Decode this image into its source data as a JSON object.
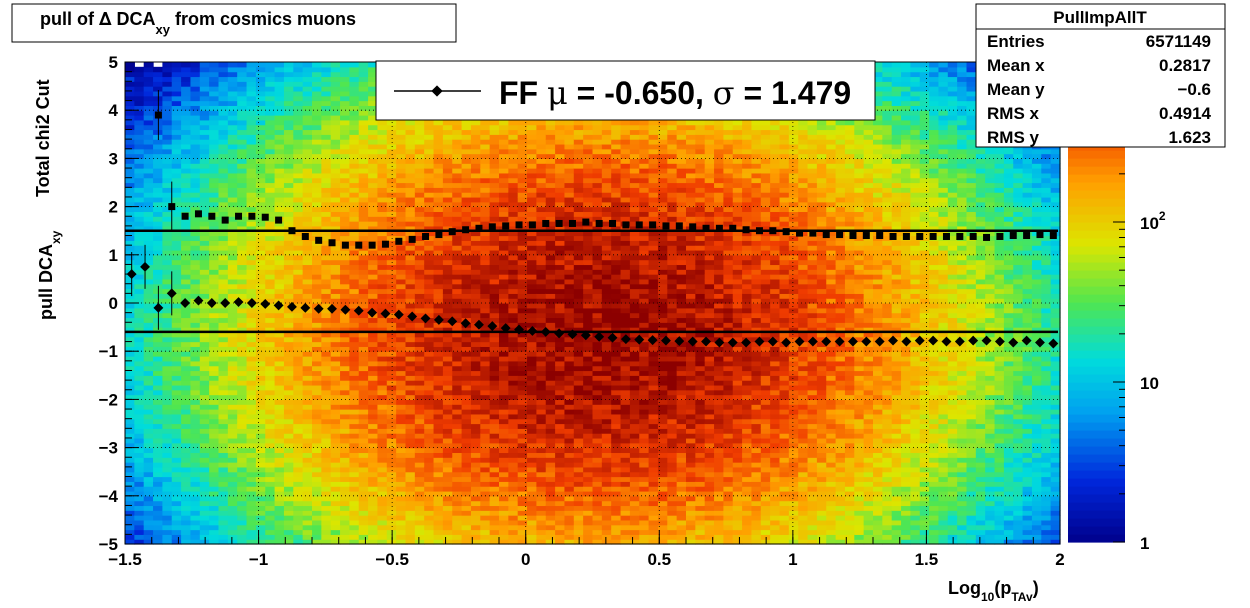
{
  "title": {
    "prefix": "pull of ",
    "delta": "∆",
    "main": " DCA",
    "sub": "xy",
    "suffix": " from cosmics muons"
  },
  "stats_box": {
    "name": "PullImpAllT",
    "rows": [
      {
        "label": "Entries",
        "value": "6571149"
      },
      {
        "label": "Mean x",
        "value": "0.2817"
      },
      {
        "label": "Mean y",
        "value": "−0.6"
      },
      {
        "label": "RMS x",
        "value": "0.4914"
      },
      {
        "label": "RMS y",
        "value": "1.623"
      }
    ]
  },
  "legend": {
    "text_a": "FF ",
    "mu": "μ",
    "text_b": " = -0.650, ",
    "sigma": "σ",
    "text_c": " =   1.479"
  },
  "axes": {
    "xlabel_main": "Log",
    "xlabel_sub1": "10",
    "xlabel_paren": "(p",
    "xlabel_sub2": "TAv",
    "xlabel_close": ")",
    "ylabel_main": "pull DCA",
    "ylabel_sub": "xy",
    "ylabel_line2": "Total chi2 Cut",
    "xticks": [
      "−1.5",
      "−1",
      "−0.5",
      "0",
      "0.5",
      "1",
      "1.5",
      "2"
    ],
    "yticks": [
      "−5",
      "−4",
      "−3",
      "−2",
      "−1",
      "0",
      "1",
      "2",
      "3",
      "4",
      "5"
    ],
    "zticks": [
      {
        "label": "1",
        "value": 1,
        "type": "plain"
      },
      {
        "label": "10",
        "value": 10,
        "type": "plain"
      },
      {
        "base": "10",
        "exp": "2",
        "value": 100,
        "type": "pow"
      }
    ]
  },
  "chart_data": {
    "type": "heatmap",
    "x_range": [
      -1.5,
      2.0
    ],
    "y_range": [
      -5,
      5
    ],
    "z_log": true,
    "z_range": [
      1,
      1000
    ],
    "grid": true,
    "heatmap_model": {
      "mean_x": 0.2817,
      "rms_x": 0.4914,
      "mean_y": -0.6,
      "rms_y": 1.623,
      "peak": 900
    },
    "fit_lines": [
      {
        "name": "mean",
        "y": -0.6
      },
      {
        "name": "sigma",
        "y": 1.5
      }
    ],
    "mean_points": {
      "x": [
        -1.475,
        -1.425,
        -1.375,
        -1.325,
        -1.275,
        -1.225,
        -1.175,
        -1.125,
        -1.075,
        -1.025,
        -0.975,
        -0.925,
        -0.875,
        -0.825,
        -0.775,
        -0.725,
        -0.675,
        -0.625,
        -0.575,
        -0.525,
        -0.475,
        -0.425,
        -0.375,
        -0.325,
        -0.275,
        -0.225,
        -0.175,
        -0.125,
        -0.075,
        -0.025,
        0.025,
        0.075,
        0.125,
        0.175,
        0.225,
        0.275,
        0.325,
        0.375,
        0.425,
        0.475,
        0.525,
        0.575,
        0.625,
        0.675,
        0.725,
        0.775,
        0.825,
        0.875,
        0.925,
        0.975,
        1.025,
        1.075,
        1.125,
        1.175,
        1.225,
        1.275,
        1.325,
        1.375,
        1.425,
        1.475,
        1.525,
        1.575,
        1.625,
        1.675,
        1.725,
        1.775,
        1.825,
        1.875,
        1.925,
        1.975
      ],
      "y": [
        0.6,
        0.75,
        -0.1,
        0.2,
        0.0,
        0.05,
        0.0,
        0.0,
        0.02,
        0.0,
        -0.02,
        -0.05,
        -0.08,
        -0.1,
        -0.12,
        -0.12,
        -0.14,
        -0.16,
        -0.2,
        -0.22,
        -0.24,
        -0.28,
        -0.32,
        -0.35,
        -0.38,
        -0.42,
        -0.45,
        -0.48,
        -0.52,
        -0.55,
        -0.58,
        -0.6,
        -0.63,
        -0.65,
        -0.67,
        -0.7,
        -0.72,
        -0.75,
        -0.76,
        -0.77,
        -0.78,
        -0.79,
        -0.8,
        -0.8,
        -0.82,
        -0.82,
        -0.82,
        -0.8,
        -0.8,
        -0.82,
        -0.8,
        -0.8,
        -0.8,
        -0.8,
        -0.8,
        -0.8,
        -0.8,
        -0.78,
        -0.8,
        -0.78,
        -0.78,
        -0.8,
        -0.8,
        -0.78,
        -0.78,
        -0.8,
        -0.82,
        -0.78,
        -0.82,
        -0.84
      ]
    },
    "sigma_points": {
      "x": [
        -1.375,
        -1.325,
        -1.275,
        -1.225,
        -1.175,
        -1.125,
        -1.075,
        -1.025,
        -0.975,
        -0.925,
        -0.875,
        -0.825,
        -0.775,
        -0.725,
        -0.675,
        -0.625,
        -0.575,
        -0.525,
        -0.475,
        -0.425,
        -0.375,
        -0.325,
        -0.275,
        -0.225,
        -0.175,
        -0.125,
        -0.075,
        -0.025,
        0.025,
        0.075,
        0.125,
        0.175,
        0.225,
        0.275,
        0.325,
        0.375,
        0.425,
        0.475,
        0.525,
        0.575,
        0.625,
        0.675,
        0.725,
        0.775,
        0.825,
        0.875,
        0.925,
        0.975,
        1.025,
        1.075,
        1.125,
        1.175,
        1.225,
        1.275,
        1.325,
        1.375,
        1.425,
        1.475,
        1.525,
        1.575,
        1.625,
        1.675,
        1.725,
        1.775,
        1.825,
        1.875,
        1.925,
        1.975
      ],
      "y": [
        3.9,
        2.0,
        1.8,
        1.85,
        1.8,
        1.72,
        1.8,
        1.8,
        1.78,
        1.72,
        1.5,
        1.38,
        1.3,
        1.25,
        1.2,
        1.2,
        1.2,
        1.22,
        1.28,
        1.32,
        1.38,
        1.42,
        1.48,
        1.52,
        1.55,
        1.58,
        1.6,
        1.62,
        1.62,
        1.65,
        1.65,
        1.65,
        1.68,
        1.65,
        1.65,
        1.62,
        1.62,
        1.62,
        1.6,
        1.6,
        1.58,
        1.55,
        1.55,
        1.55,
        1.52,
        1.5,
        1.5,
        1.48,
        1.45,
        1.45,
        1.42,
        1.42,
        1.4,
        1.4,
        1.4,
        1.38,
        1.38,
        1.38,
        1.38,
        1.38,
        1.38,
        1.38,
        1.36,
        1.38,
        1.4,
        1.4,
        1.42,
        1.4
      ]
    }
  }
}
